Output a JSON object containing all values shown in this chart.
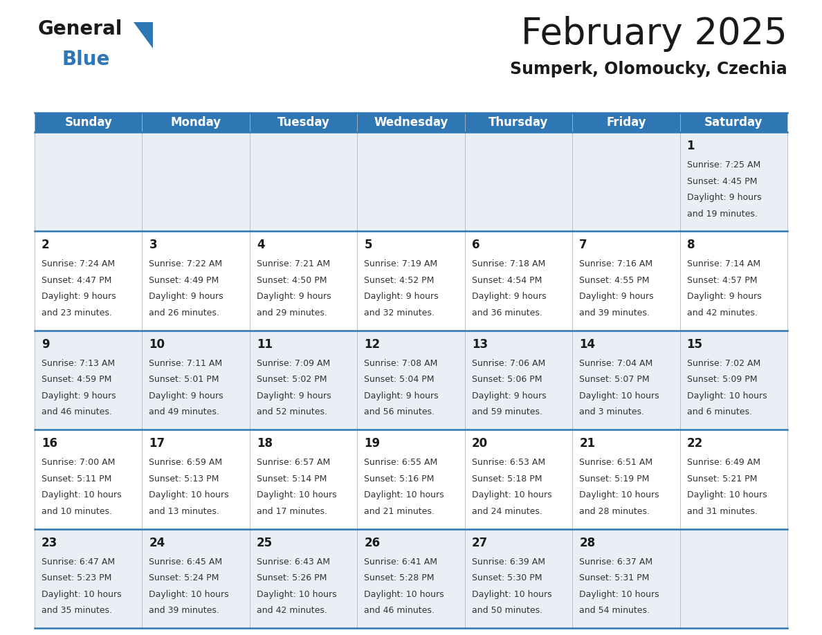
{
  "title": "February 2025",
  "subtitle": "Sumperk, Olomoucky, Czechia",
  "header_bg": "#2E76B4",
  "header_text_color": "#FFFFFF",
  "day_names": [
    "Sunday",
    "Monday",
    "Tuesday",
    "Wednesday",
    "Thursday",
    "Friday",
    "Saturday"
  ],
  "row_bg_odd": "#EAEFF5",
  "row_bg_even": "#FFFFFF",
  "separator_color": "#2E76B4",
  "date_color": "#1a1a1a",
  "info_color": "#333333",
  "calendar": [
    [
      null,
      null,
      null,
      null,
      null,
      null,
      {
        "day": 1,
        "sunrise": "7:25 AM",
        "sunset": "4:45 PM",
        "daylight": "9 hours",
        "daylight2": "and 19 minutes."
      }
    ],
    [
      {
        "day": 2,
        "sunrise": "7:24 AM",
        "sunset": "4:47 PM",
        "daylight": "9 hours",
        "daylight2": "and 23 minutes."
      },
      {
        "day": 3,
        "sunrise": "7:22 AM",
        "sunset": "4:49 PM",
        "daylight": "9 hours",
        "daylight2": "and 26 minutes."
      },
      {
        "day": 4,
        "sunrise": "7:21 AM",
        "sunset": "4:50 PM",
        "daylight": "9 hours",
        "daylight2": "and 29 minutes."
      },
      {
        "day": 5,
        "sunrise": "7:19 AM",
        "sunset": "4:52 PM",
        "daylight": "9 hours",
        "daylight2": "and 32 minutes."
      },
      {
        "day": 6,
        "sunrise": "7:18 AM",
        "sunset": "4:54 PM",
        "daylight": "9 hours",
        "daylight2": "and 36 minutes."
      },
      {
        "day": 7,
        "sunrise": "7:16 AM",
        "sunset": "4:55 PM",
        "daylight": "9 hours",
        "daylight2": "and 39 minutes."
      },
      {
        "day": 8,
        "sunrise": "7:14 AM",
        "sunset": "4:57 PM",
        "daylight": "9 hours",
        "daylight2": "and 42 minutes."
      }
    ],
    [
      {
        "day": 9,
        "sunrise": "7:13 AM",
        "sunset": "4:59 PM",
        "daylight": "9 hours",
        "daylight2": "and 46 minutes."
      },
      {
        "day": 10,
        "sunrise": "7:11 AM",
        "sunset": "5:01 PM",
        "daylight": "9 hours",
        "daylight2": "and 49 minutes."
      },
      {
        "day": 11,
        "sunrise": "7:09 AM",
        "sunset": "5:02 PM",
        "daylight": "9 hours",
        "daylight2": "and 52 minutes."
      },
      {
        "day": 12,
        "sunrise": "7:08 AM",
        "sunset": "5:04 PM",
        "daylight": "9 hours",
        "daylight2": "and 56 minutes."
      },
      {
        "day": 13,
        "sunrise": "7:06 AM",
        "sunset": "5:06 PM",
        "daylight": "9 hours",
        "daylight2": "and 59 minutes."
      },
      {
        "day": 14,
        "sunrise": "7:04 AM",
        "sunset": "5:07 PM",
        "daylight": "10 hours",
        "daylight2": "and 3 minutes."
      },
      {
        "day": 15,
        "sunrise": "7:02 AM",
        "sunset": "5:09 PM",
        "daylight": "10 hours",
        "daylight2": "and 6 minutes."
      }
    ],
    [
      {
        "day": 16,
        "sunrise": "7:00 AM",
        "sunset": "5:11 PM",
        "daylight": "10 hours",
        "daylight2": "and 10 minutes."
      },
      {
        "day": 17,
        "sunrise": "6:59 AM",
        "sunset": "5:13 PM",
        "daylight": "10 hours",
        "daylight2": "and 13 minutes."
      },
      {
        "day": 18,
        "sunrise": "6:57 AM",
        "sunset": "5:14 PM",
        "daylight": "10 hours",
        "daylight2": "and 17 minutes."
      },
      {
        "day": 19,
        "sunrise": "6:55 AM",
        "sunset": "5:16 PM",
        "daylight": "10 hours",
        "daylight2": "and 21 minutes."
      },
      {
        "day": 20,
        "sunrise": "6:53 AM",
        "sunset": "5:18 PM",
        "daylight": "10 hours",
        "daylight2": "and 24 minutes."
      },
      {
        "day": 21,
        "sunrise": "6:51 AM",
        "sunset": "5:19 PM",
        "daylight": "10 hours",
        "daylight2": "and 28 minutes."
      },
      {
        "day": 22,
        "sunrise": "6:49 AM",
        "sunset": "5:21 PM",
        "daylight": "10 hours",
        "daylight2": "and 31 minutes."
      }
    ],
    [
      {
        "day": 23,
        "sunrise": "6:47 AM",
        "sunset": "5:23 PM",
        "daylight": "10 hours",
        "daylight2": "and 35 minutes."
      },
      {
        "day": 24,
        "sunrise": "6:45 AM",
        "sunset": "5:24 PM",
        "daylight": "10 hours",
        "daylight2": "and 39 minutes."
      },
      {
        "day": 25,
        "sunrise": "6:43 AM",
        "sunset": "5:26 PM",
        "daylight": "10 hours",
        "daylight2": "and 42 minutes."
      },
      {
        "day": 26,
        "sunrise": "6:41 AM",
        "sunset": "5:28 PM",
        "daylight": "10 hours",
        "daylight2": "and 46 minutes."
      },
      {
        "day": 27,
        "sunrise": "6:39 AM",
        "sunset": "5:30 PM",
        "daylight": "10 hours",
        "daylight2": "and 50 minutes."
      },
      {
        "day": 28,
        "sunrise": "6:37 AM",
        "sunset": "5:31 PM",
        "daylight": "10 hours",
        "daylight2": "and 54 minutes."
      },
      null
    ]
  ],
  "logo_general_color": "#1a1a1a",
  "logo_blue_color": "#2E76B4",
  "logo_triangle_color": "#2E76B4",
  "title_fontsize": 38,
  "subtitle_fontsize": 17,
  "header_fontsize": 12,
  "day_fontsize": 12,
  "info_fontsize": 9
}
